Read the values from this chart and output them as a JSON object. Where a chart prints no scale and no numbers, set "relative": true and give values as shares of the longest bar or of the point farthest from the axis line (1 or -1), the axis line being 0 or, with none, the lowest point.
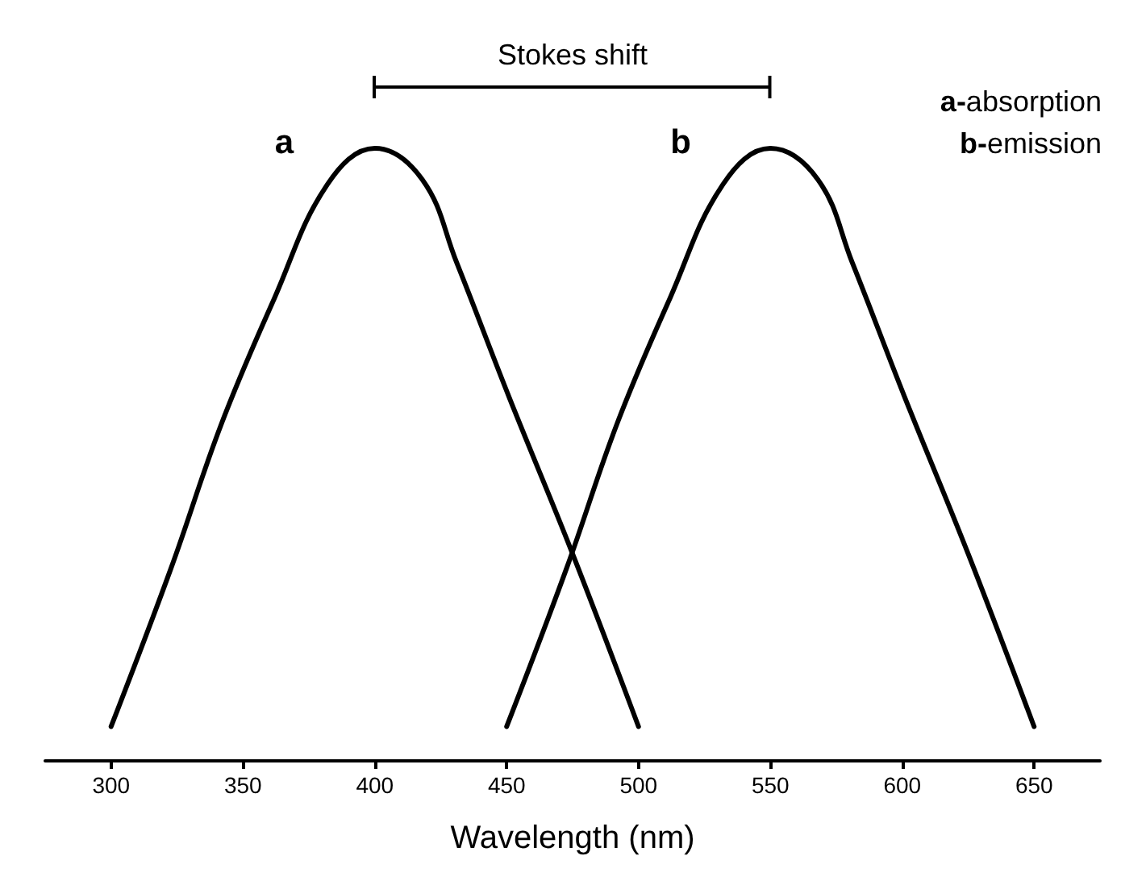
{
  "chart_data": {
    "type": "line",
    "relative": true,
    "xlabel": "Wavelength (nm)",
    "xlim": [
      275,
      675
    ],
    "xticks": [
      300,
      350,
      400,
      450,
      500,
      550,
      600,
      650
    ],
    "series": [
      {
        "name": "a",
        "color": "#000000",
        "x": [
          300,
          322.6,
          342,
          362,
          382,
          400,
          418,
          431,
          451,
          475,
          500
        ],
        "values": [
          0.056,
          0.313,
          0.552,
          0.756,
          0.941,
          1,
          0.949,
          0.814,
          0.593,
          0.338,
          0.056
        ]
      },
      {
        "name": "b",
        "color": "#000000",
        "x": [
          450,
          472.6,
          492,
          512,
          532,
          550,
          568,
          581,
          601,
          625,
          650
        ],
        "values": [
          0.056,
          0.313,
          0.552,
          0.756,
          0.941,
          1,
          0.949,
          0.814,
          0.593,
          0.338,
          0.056
        ]
      }
    ],
    "annotations": [
      "Stokes shift",
      "a-absorption",
      "b-emission"
    ],
    "grid": false,
    "legend": false,
    "marker": "none",
    "line_style": "solid"
  }
}
